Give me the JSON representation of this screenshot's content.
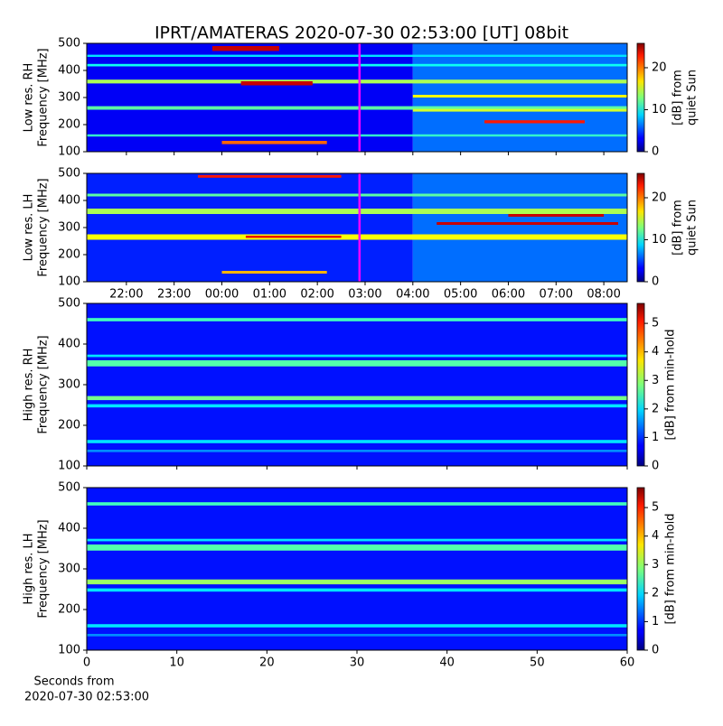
{
  "chart_data": [
    {
      "type": "heatmap",
      "title": "IPRT/AMATERAS 2020-07-30 02:53:00 [UT]   08bit",
      "ylabel": [
        "Low res. RH",
        "Frequency [MHz]"
      ],
      "xlim": [
        21.17,
        32.49
      ],
      "xticks": [
        22,
        23,
        24,
        25,
        26,
        27,
        28,
        29,
        30,
        31,
        32
      ],
      "show_xtick_labels": false,
      "ylim": [
        100,
        500
      ],
      "yticks": [
        100,
        200,
        300,
        400,
        500
      ],
      "marker_x": 26.883,
      "marker_color": "#ff00ff",
      "colorbar": {
        "label": [
          "[dB] from",
          "quiet Sun"
        ],
        "lim": [
          0,
          25.8
        ],
        "ticks": [
          0,
          10,
          20
        ]
      },
      "bands": [
        {
          "x": [
            21.17,
            28
          ],
          "y": [
            100,
            500
          ],
          "z": 3
        },
        {
          "x": [
            28,
            32.49
          ],
          "y": [
            100,
            500
          ],
          "z": 6
        },
        {
          "x": [
            21.17,
            32.49
          ],
          "y": [
            352,
            366
          ],
          "z": 14
        },
        {
          "x": [
            24.4,
            25.9
          ],
          "y": [
            345,
            360
          ],
          "z": 24
        },
        {
          "x": [
            23.8,
            25.2
          ],
          "y": [
            472,
            490
          ],
          "z": 24
        },
        {
          "x": [
            21.17,
            32.49
          ],
          "y": [
            255,
            268
          ],
          "z": 12
        },
        {
          "x": [
            24.0,
            26.2
          ],
          "y": [
            128,
            140
          ],
          "z": 20
        },
        {
          "x": [
            29.5,
            31.6
          ],
          "y": [
            205,
            216
          ],
          "z": 22
        },
        {
          "x": [
            21.17,
            32.49
          ],
          "y": [
            415,
            424
          ],
          "z": 10
        },
        {
          "x": [
            21.17,
            32.49
          ],
          "y": [
            450,
            458
          ],
          "z": 9
        },
        {
          "x": [
            21.17,
            32.49
          ],
          "y": [
            156,
            164
          ],
          "z": 11
        },
        {
          "x": [
            28,
            32.49
          ],
          "y": [
            300,
            310
          ],
          "z": 16
        },
        {
          "x": [
            28,
            32.49
          ],
          "y": [
            248,
            258
          ],
          "z": 15
        }
      ]
    },
    {
      "type": "heatmap",
      "ylabel": [
        "Low res. LH",
        "Frequency [MHz]"
      ],
      "xlim": [
        21.17,
        32.49
      ],
      "xticks": [
        {
          "value": 22,
          "label": "22:00"
        },
        {
          "value": 23,
          "label": "23:00"
        },
        {
          "value": 24,
          "label": "00:00"
        },
        {
          "value": 25,
          "label": "01:00"
        },
        {
          "value": 26,
          "label": "02:00"
        },
        {
          "value": 27,
          "label": "03:00"
        },
        {
          "value": 28,
          "label": "04:00"
        },
        {
          "value": 29,
          "label": "05:00"
        },
        {
          "value": 30,
          "label": "06:00"
        },
        {
          "value": 31,
          "label": "07:00"
        },
        {
          "value": 32,
          "label": "08:00"
        }
      ],
      "show_xtick_labels": true,
      "ylim": [
        100,
        500
      ],
      "yticks": [
        100,
        200,
        300,
        400,
        500
      ],
      "marker_x": 26.883,
      "marker_color": "#ff00ff",
      "colorbar": {
        "label": [
          "[dB] from",
          "quiet Sun"
        ],
        "lim": [
          0,
          25.8
        ],
        "ticks": [
          0,
          10,
          20
        ]
      },
      "bands": [
        {
          "x": [
            21.17,
            28
          ],
          "y": [
            100,
            500
          ],
          "z": 4
        },
        {
          "x": [
            28,
            32.49
          ],
          "y": [
            100,
            500
          ],
          "z": 6
        },
        {
          "x": [
            23.5,
            26.5
          ],
          "y": [
            484,
            494
          ],
          "z": 22
        },
        {
          "x": [
            21.17,
            32.49
          ],
          "y": [
            350,
            370
          ],
          "z": 14
        },
        {
          "x": [
            28.5,
            32.3
          ],
          "y": [
            310,
            320
          ],
          "z": 24
        },
        {
          "x": [
            30,
            32
          ],
          "y": [
            340,
            350
          ],
          "z": 24
        },
        {
          "x": [
            21.17,
            32.49
          ],
          "y": [
            255,
            275
          ],
          "z": 16
        },
        {
          "x": [
            24.5,
            26.5
          ],
          "y": [
            262,
            270
          ],
          "z": 23
        },
        {
          "x": [
            24,
            26.2
          ],
          "y": [
            130,
            140
          ],
          "z": 18
        },
        {
          "x": [
            21.17,
            32.49
          ],
          "y": [
            415,
            425
          ],
          "z": 12
        }
      ]
    },
    {
      "type": "heatmap",
      "ylabel": [
        "High res. RH",
        "Frequency [MHz]"
      ],
      "xlim": [
        0,
        60
      ],
      "xticks": [
        0,
        10,
        20,
        30,
        40,
        50,
        60
      ],
      "show_xtick_labels": false,
      "ylim": [
        100,
        500
      ],
      "yticks": [
        100,
        200,
        300,
        400,
        500
      ],
      "colorbar": {
        "label": [
          "[dB] from min-hold"
        ],
        "lim": [
          0,
          5.7
        ],
        "ticks": [
          0,
          1,
          2,
          3,
          4,
          5
        ]
      },
      "bands": [
        {
          "x": [
            0,
            60
          ],
          "y": [
            100,
            500
          ],
          "z": 0.8
        },
        {
          "x": [
            0,
            60
          ],
          "y": [
            456,
            464
          ],
          "z": 2.5
        },
        {
          "x": [
            0,
            60
          ],
          "y": [
            345,
            360
          ],
          "z": 2.6
        },
        {
          "x": [
            0,
            60
          ],
          "y": [
            368,
            374
          ],
          "z": 2
        },
        {
          "x": [
            0,
            60
          ],
          "y": [
            262,
            272
          ],
          "z": 2.8
        },
        {
          "x": [
            0,
            60
          ],
          "y": [
            244,
            252
          ],
          "z": 2
        },
        {
          "x": [
            0,
            60
          ],
          "y": [
            156,
            164
          ],
          "z": 2
        },
        {
          "x": [
            0,
            60
          ],
          "y": [
            134,
            140
          ],
          "z": 1.5
        }
      ]
    },
    {
      "type": "heatmap",
      "ylabel": [
        "High res. LH",
        "Frequency [MHz]"
      ],
      "xlim": [
        0,
        60
      ],
      "xticks": [
        0,
        10,
        20,
        30,
        40,
        50,
        60
      ],
      "show_xtick_labels": true,
      "xlabel": [
        "Seconds from",
        "2020-07-30 02:53:00"
      ],
      "ylim": [
        100,
        500
      ],
      "yticks": [
        100,
        200,
        300,
        400,
        500
      ],
      "colorbar": {
        "label": [
          "[dB] from min-hold"
        ],
        "lim": [
          0,
          5.7
        ],
        "ticks": [
          0,
          1,
          2,
          3,
          4,
          5
        ]
      },
      "bands": [
        {
          "x": [
            0,
            60
          ],
          "y": [
            100,
            500
          ],
          "z": 0.8
        },
        {
          "x": [
            0,
            60
          ],
          "y": [
            456,
            464
          ],
          "z": 2.5
        },
        {
          "x": [
            0,
            60
          ],
          "y": [
            345,
            360
          ],
          "z": 2.6
        },
        {
          "x": [
            0,
            60
          ],
          "y": [
            368,
            374
          ],
          "z": 2
        },
        {
          "x": [
            0,
            60
          ],
          "y": [
            262,
            274
          ],
          "z": 3
        },
        {
          "x": [
            0,
            60
          ],
          "y": [
            244,
            252
          ],
          "z": 2
        },
        {
          "x": [
            0,
            60
          ],
          "y": [
            156,
            164
          ],
          "z": 2
        },
        {
          "x": [
            0,
            60
          ],
          "y": [
            134,
            140
          ],
          "z": 1.5
        }
      ]
    }
  ]
}
